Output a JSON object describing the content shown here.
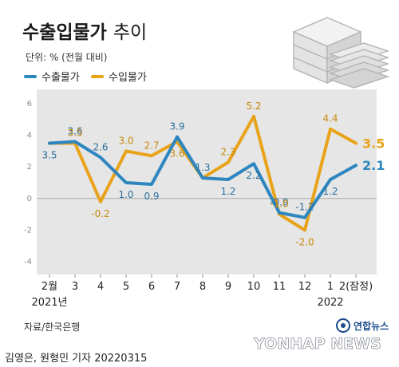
{
  "header": {
    "title_bold": "수출입물가",
    "title_light": "추이",
    "unit": "단위: % (전월 대비)"
  },
  "source": "자료/한국은행",
  "credit": "김영은, 원형민 기자  20220315",
  "brand": "연합뉴스",
  "watermark": "YONHAP NEWS",
  "colors": {
    "export": "#2e86c1",
    "import": "#e8a31a",
    "plot_bg": "#e6e6e6",
    "zero_line": "#aaaaaa",
    "illustration": "#bfbfbf"
  },
  "chart_data": {
    "type": "line",
    "categories": [
      "2월",
      "3",
      "4",
      "5",
      "6",
      "7",
      "8",
      "9",
      "10",
      "11",
      "12",
      "1",
      "2(잠정)"
    ],
    "year_labels": [
      {
        "index": 0,
        "text": "2021년"
      },
      {
        "index": 11,
        "text": "2022"
      }
    ],
    "ylim": [
      -4,
      6
    ],
    "yticks": [
      -4,
      -2,
      0,
      2,
      4,
      6
    ],
    "grid": false,
    "legend": "top-left",
    "series": [
      {
        "name": "수출물가",
        "key": "export",
        "values": [
          3.5,
          3.6,
          2.6,
          1.0,
          0.9,
          3.9,
          1.3,
          1.2,
          2.2,
          -0.9,
          -1.2,
          1.2,
          2.1
        ],
        "labels": [
          "3.5",
          "3.6",
          "2.6",
          "1.0",
          "0.9",
          "3.9",
          "1.3",
          "1.2",
          "2.2",
          "-0.9",
          "-1.2",
          "1.2",
          "2.1"
        ]
      },
      {
        "name": "수입물가",
        "key": "import",
        "values": [
          3.5,
          3.5,
          -0.2,
          3.0,
          2.7,
          3.6,
          1.3,
          2.3,
          5.2,
          -1.0,
          -2.0,
          4.4,
          3.5
        ],
        "labels": [
          "",
          "3.5",
          "-0.2",
          "3.0",
          "2.7",
          "3.6",
          "",
          "2.3",
          "5.2",
          "-1.0",
          "-2.0",
          "4.4",
          "3.5"
        ]
      }
    ]
  }
}
